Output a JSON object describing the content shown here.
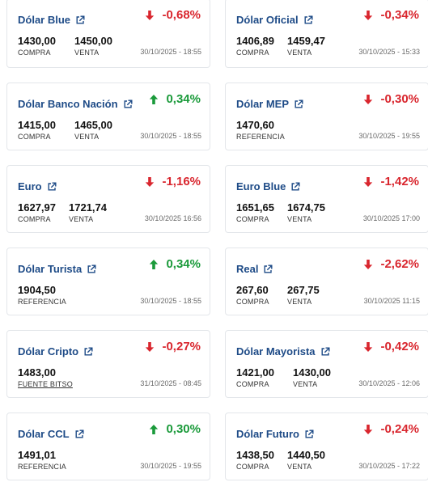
{
  "colors": {
    "up": "#1a9a3a",
    "down": "#d9262e",
    "title": "#1e4b87"
  },
  "cards": [
    {
      "name": "Dólar Blue",
      "change": "-0,68%",
      "direction": "down",
      "values": [
        {
          "num": "1430,00",
          "label": "COMPRA"
        },
        {
          "num": "1450,00",
          "label": "VENTA"
        }
      ],
      "date": "30/10/2025 - 18:55"
    },
    {
      "name": "Dólar Oficial",
      "change": "-0,34%",
      "direction": "down",
      "values": [
        {
          "num": "1406,89",
          "label": "COMPRA"
        },
        {
          "num": "1459,47",
          "label": "VENTA"
        }
      ],
      "date": "30/10/2025 - 15:33"
    },
    {
      "name": "Dólar Banco Nación",
      "change": "0,34%",
      "direction": "up",
      "values": [
        {
          "num": "1415,00",
          "label": "COMPRA"
        },
        {
          "num": "1465,00",
          "label": "VENTA"
        }
      ],
      "date": "30/10/2025 - 18:55"
    },
    {
      "name": "Dólar MEP",
      "change": "-0,30%",
      "direction": "down",
      "values": [
        {
          "num": "1470,60",
          "label": "REFERENCIA"
        }
      ],
      "date": "30/10/2025 - 19:55"
    },
    {
      "name": "Euro",
      "change": "-1,16%",
      "direction": "down",
      "values": [
        {
          "num": "1627,97",
          "label": "COMPRA"
        },
        {
          "num": "1721,74",
          "label": "VENTA"
        }
      ],
      "date": "30/10/2025 16:56"
    },
    {
      "name": "Euro Blue",
      "change": "-1,42%",
      "direction": "down",
      "values": [
        {
          "num": "1651,65",
          "label": "COMPRA"
        },
        {
          "num": "1674,75",
          "label": "VENTA"
        }
      ],
      "date": "30/10/2025 17:00"
    },
    {
      "name": "Dólar Turista",
      "change": "0,34%",
      "direction": "up",
      "values": [
        {
          "num": "1904,50",
          "label": "REFERENCIA"
        }
      ],
      "date": "30/10/2025 - 18:55"
    },
    {
      "name": "Real",
      "change": "-2,62%",
      "direction": "down",
      "values": [
        {
          "num": "267,60",
          "label": "COMPRA"
        },
        {
          "num": "267,75",
          "label": "VENTA"
        }
      ],
      "date": "30/10/2025 11:15"
    },
    {
      "name": "Dólar Cripto",
      "change": "-0,27%",
      "direction": "down",
      "values": [
        {
          "num": "1483,00",
          "label": "FUENTE BITSO",
          "link": true
        }
      ],
      "date": "31/10/2025 - 08:45"
    },
    {
      "name": "Dólar Mayorista",
      "change": "-0,42%",
      "direction": "down",
      "values": [
        {
          "num": "1421,00",
          "label": "COMPRA"
        },
        {
          "num": "1430,00",
          "label": "VENTA"
        }
      ],
      "date": "30/10/2025 - 12:06"
    },
    {
      "name": "Dólar CCL",
      "change": "0,30%",
      "direction": "up",
      "values": [
        {
          "num": "1491,01",
          "label": "REFERENCIA"
        }
      ],
      "date": "30/10/2025 - 19:55"
    },
    {
      "name": "Dólar Futuro",
      "change": "-0,24%",
      "direction": "down",
      "values": [
        {
          "num": "1438,50",
          "label": "COMPRA"
        },
        {
          "num": "1440,50",
          "label": "VENTA"
        }
      ],
      "date": "30/10/2025 - 17:22"
    }
  ]
}
